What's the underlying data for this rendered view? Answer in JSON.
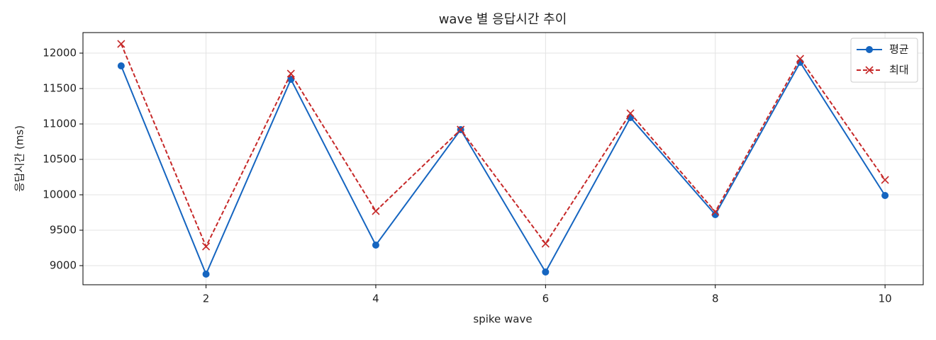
{
  "chart_data": {
    "type": "line",
    "title": "wave 별 응답시간 추이",
    "xlabel": "spike wave",
    "ylabel": "응답시간 (ms)",
    "x": [
      1,
      2,
      3,
      4,
      5,
      6,
      7,
      8,
      9,
      10
    ],
    "series": [
      {
        "name": "평균",
        "color": "#1565c0",
        "marker": "circle",
        "linestyle": "solid",
        "values": [
          11820,
          8880,
          11630,
          9290,
          10920,
          8910,
          11090,
          9720,
          11870,
          9990
        ]
      },
      {
        "name": "최대",
        "color": "#c62828",
        "marker": "x",
        "linestyle": "dashed",
        "values": [
          12130,
          9270,
          11710,
          9770,
          10920,
          9310,
          11150,
          9760,
          11920,
          10210
        ]
      }
    ],
    "xlim": [
      0.55,
      10.45
    ],
    "ylim": [
      8730,
      12290
    ],
    "xticks": [
      2,
      4,
      6,
      8,
      10
    ],
    "yticks": [
      9000,
      9500,
      10000,
      10500,
      11000,
      11500,
      12000
    ],
    "grid": true,
    "legend": "upper right"
  }
}
